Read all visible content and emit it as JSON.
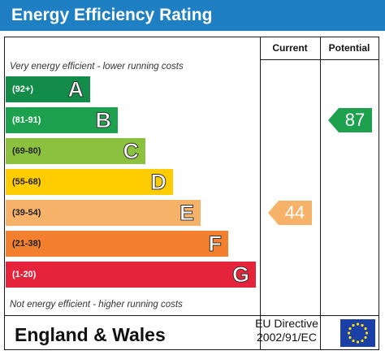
{
  "title": "Energy Efficiency Rating",
  "columns": {
    "current": "Current",
    "potential": "Potential"
  },
  "captions": {
    "top": "Very energy efficient - lower running costs",
    "bottom": "Not energy efficient - higher running costs"
  },
  "footer": {
    "country": "England & Wales",
    "directive_line1": "EU Directive",
    "directive_line2": "2002/91/EC"
  },
  "colors": {
    "title_bar": "#1f7fc3",
    "A": "#138c4a",
    "B": "#1ea14e",
    "C": "#8cc03f",
    "D": "#ffcc00",
    "E": "#f7b26a",
    "F": "#f2802e",
    "G": "#e5243b",
    "flag": "#1a3fa6",
    "stars": "#ffdd00"
  },
  "icons": {
    "flag": "eu-flag-icon"
  },
  "chart_data": {
    "type": "table",
    "title": "Energy Efficiency Rating",
    "bands": [
      {
        "letter": "A",
        "range": "(92+)"
      },
      {
        "letter": "B",
        "range": "(81-91)"
      },
      {
        "letter": "C",
        "range": "(69-80)"
      },
      {
        "letter": "D",
        "range": "(55-68)"
      },
      {
        "letter": "E",
        "range": "(39-54)"
      },
      {
        "letter": "F",
        "range": "(21-38)"
      },
      {
        "letter": "G",
        "range": "(1-20)"
      }
    ],
    "current": {
      "value": 44,
      "label": "44",
      "band": "E"
    },
    "potential": {
      "value": 87,
      "label": "87",
      "band": "B"
    }
  }
}
